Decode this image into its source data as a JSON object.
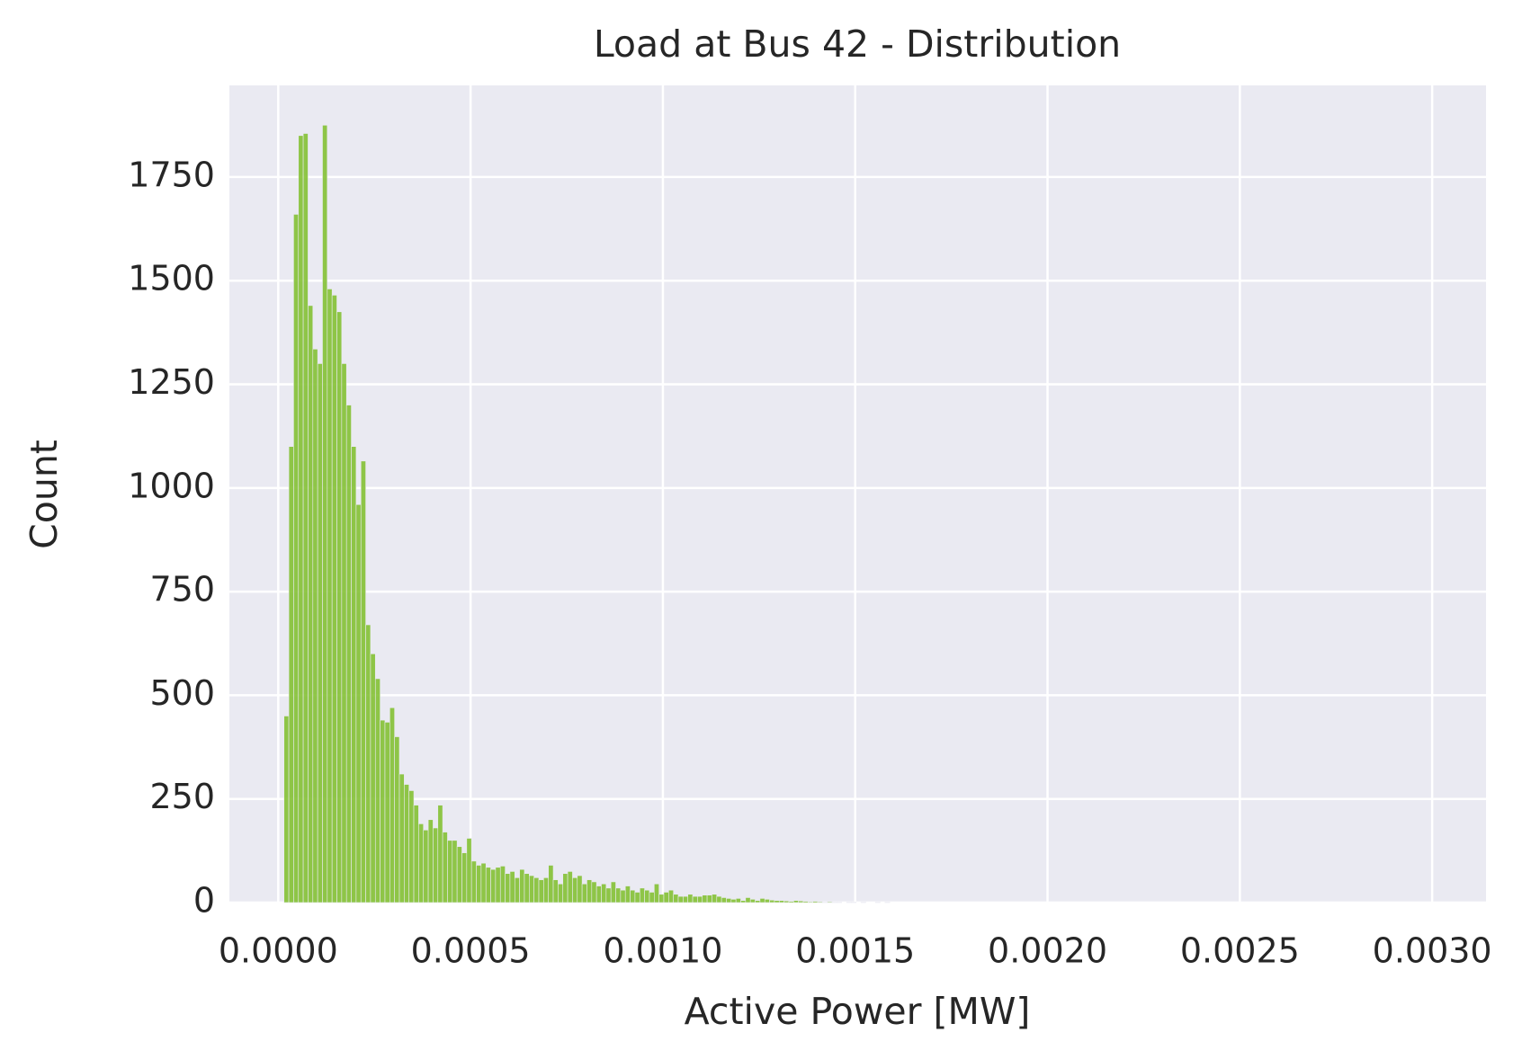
{
  "chart_data": {
    "type": "histogram",
    "title": "Load at Bus 42 - Distribution",
    "xlabel": "Active Power [MW]",
    "ylabel": "Count",
    "color": "#84c134",
    "grid": true,
    "xlim": [
      -0.000127,
      0.00314
    ],
    "ylim": [
      0,
      1971
    ],
    "xticks": [
      {
        "value": 0,
        "label": "0.0000"
      },
      {
        "value": 0.0005,
        "label": "0.0005"
      },
      {
        "value": 0.001,
        "label": "0.0010"
      },
      {
        "value": 0.0015,
        "label": "0.0015"
      },
      {
        "value": 0.002,
        "label": "0.0020"
      },
      {
        "value": 0.0025,
        "label": "0.0025"
      },
      {
        "value": 0.003,
        "label": "0.0030"
      }
    ],
    "yticks": [
      0,
      250,
      500,
      750,
      1000,
      1250,
      1500,
      1750
    ],
    "bins": [
      1.5e-05,
      2.75e-05,
      4e-05,
      5.25e-05,
      6.5e-05,
      7.75e-05,
      9e-05,
      0.0001025,
      0.000115,
      0.0001275,
      0.00014,
      0.0001525,
      0.000165,
      0.0001775,
      0.00019,
      0.0002025,
      0.000215,
      0.0002275,
      0.00024,
      0.0002525,
      0.000265,
      0.0002775,
      0.00029,
      0.0003025,
      0.000315,
      0.0003275,
      0.00034,
      0.0003525,
      0.000365,
      0.0003775,
      0.00039,
      0.0004025,
      0.000415,
      0.0004275,
      0.00044,
      0.0004525,
      0.000465,
      0.0004775,
      0.00049,
      0.0005025,
      0.000515,
      0.0005275,
      0.00054,
      0.0005525,
      0.000565,
      0.0005775,
      0.00059,
      0.0006025,
      0.000615,
      0.0006275,
      0.00064,
      0.0006525,
      0.000665,
      0.0006775,
      0.00069,
      0.0007025,
      0.000715,
      0.0007275,
      0.00074,
      0.0007525,
      0.000765,
      0.0007775,
      0.00079,
      0.0008025,
      0.000815,
      0.0008275,
      0.00084,
      0.0008525,
      0.000865,
      0.0008775,
      0.00089,
      0.0009025,
      0.000915,
      0.0009275,
      0.00094,
      0.0009525,
      0.000965,
      0.0009775,
      0.00099,
      0.0010025,
      0.001015,
      0.0010275,
      0.00104,
      0.0010525,
      0.001065,
      0.0010775,
      0.00109,
      0.0011025,
      0.001115,
      0.0011275,
      0.00114,
      0.0011525,
      0.001165,
      0.0011775,
      0.00119,
      0.0012025,
      0.001215,
      0.0012275,
      0.00124,
      0.0012525,
      0.001265,
      0.0012775,
      0.00129,
      0.0013025,
      0.001315,
      0.0013275,
      0.00134,
      0.0013525,
      0.001365,
      0.0013775,
      0.00139,
      0.0014025,
      0.001415,
      0.0014275,
      0.00144,
      0.0014525,
      0.001465,
      0.0014775,
      0.00149,
      0.0015025,
      0.001515,
      0.0015275,
      0.00154,
      0.0015525,
      0.001565,
      0.0015775,
      0.00159
    ],
    "values": [
      450,
      1100,
      1660,
      1850,
      1855,
      1440,
      1335,
      1300,
      1875,
      1480,
      1465,
      1425,
      1300,
      1200,
      1100,
      960,
      1065,
      670,
      600,
      540,
      440,
      435,
      470,
      400,
      310,
      285,
      270,
      235,
      190,
      175,
      200,
      180,
      235,
      170,
      150,
      150,
      135,
      120,
      155,
      100,
      90,
      95,
      85,
      80,
      85,
      88,
      70,
      75,
      60,
      80,
      70,
      65,
      60,
      55,
      60,
      90,
      55,
      45,
      70,
      75,
      60,
      65,
      45,
      55,
      50,
      40,
      45,
      35,
      50,
      35,
      30,
      40,
      30,
      25,
      35,
      30,
      25,
      45,
      20,
      25,
      30,
      20,
      15,
      15,
      20,
      15,
      15,
      18,
      18,
      20,
      15,
      12,
      10,
      8,
      10,
      5,
      12,
      8,
      5,
      10,
      8,
      6,
      5,
      5,
      4,
      3,
      5,
      4,
      3,
      2,
      3,
      2,
      1,
      2,
      1,
      1,
      0,
      1,
      1,
      0,
      1,
      0,
      0,
      1,
      0,
      1
    ]
  }
}
